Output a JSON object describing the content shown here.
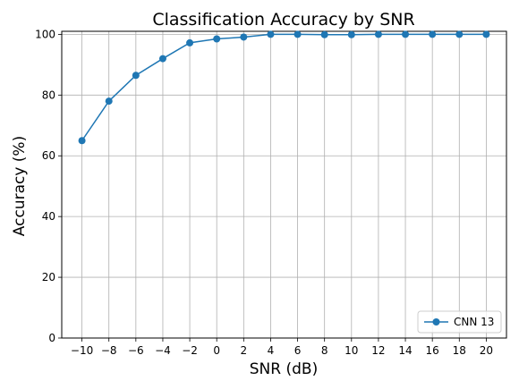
{
  "chart_data": {
    "type": "line",
    "title": "Classification Accuracy by SNR",
    "xlabel": "SNR (dB)",
    "ylabel": "Accuracy (%)",
    "x": [
      -10,
      -8,
      -6,
      -4,
      -2,
      0,
      2,
      4,
      6,
      8,
      10,
      12,
      14,
      16,
      18,
      20
    ],
    "x_tick_labels": [
      "−10",
      "−8",
      "−6",
      "−4",
      "−2",
      "0",
      "2",
      "4",
      "6",
      "8",
      "10",
      "12",
      "14",
      "16",
      "18",
      "20"
    ],
    "y_ticks": [
      0,
      20,
      40,
      60,
      80,
      100
    ],
    "y_tick_labels": [
      "0",
      "20",
      "40",
      "60",
      "80",
      "100"
    ],
    "xlim": [
      -11.5,
      21.5
    ],
    "ylim": [
      0,
      101
    ],
    "grid": true,
    "legend_position": "lower-right",
    "series": [
      {
        "name": "CNN 13",
        "color": "#1f77b4",
        "marker": "circle",
        "values": [
          65.0,
          78.0,
          86.5,
          92.0,
          97.2,
          98.5,
          99.1,
          100.0,
          100.0,
          99.9,
          99.9,
          100.0,
          100.0,
          100.0,
          100.0,
          100.0
        ]
      }
    ]
  }
}
